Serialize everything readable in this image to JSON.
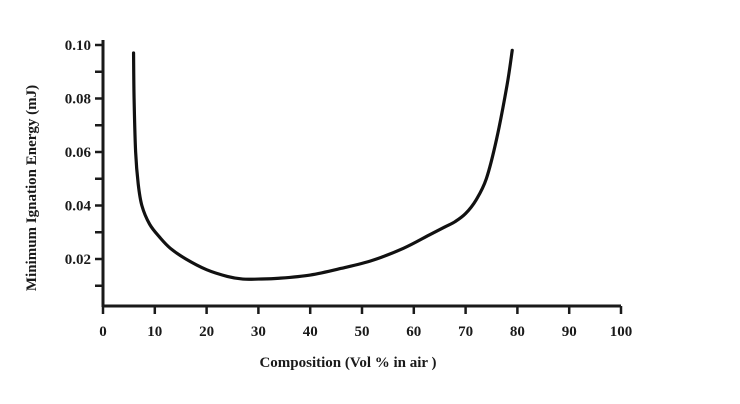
{
  "chart_data": {
    "type": "line",
    "title": "",
    "xlabel": "Composition (Vol % in air )",
    "ylabel": "Minimum Ignation Energy (mJ)",
    "xlim": [
      0,
      100
    ],
    "ylim": [
      0.01,
      0.1
    ],
    "x_ticks": [
      "0",
      "10",
      "20",
      "30",
      "40",
      "50",
      "60",
      "70",
      "80",
      "90",
      "100"
    ],
    "y_ticks": [
      "0.10",
      "0.08",
      "0.06",
      "0.04",
      "0.02"
    ],
    "grid": false,
    "legend": "none",
    "series": [
      {
        "color": "#111111",
        "x": [
          5.9,
          6.0,
          6.3,
          6.8,
          7.5,
          9,
          11,
          13,
          16,
          20,
          24,
          27,
          30,
          34,
          40,
          46,
          52,
          58,
          63,
          66,
          68,
          70,
          72,
          74,
          76,
          78,
          79
        ],
        "y": [
          0.097,
          0.08,
          0.06,
          0.048,
          0.04,
          0.033,
          0.028,
          0.024,
          0.02,
          0.016,
          0.0135,
          0.0125,
          0.0125,
          0.0128,
          0.014,
          0.0165,
          0.0195,
          0.024,
          0.029,
          0.032,
          0.034,
          0.037,
          0.042,
          0.05,
          0.065,
          0.085,
          0.098
        ]
      }
    ]
  }
}
